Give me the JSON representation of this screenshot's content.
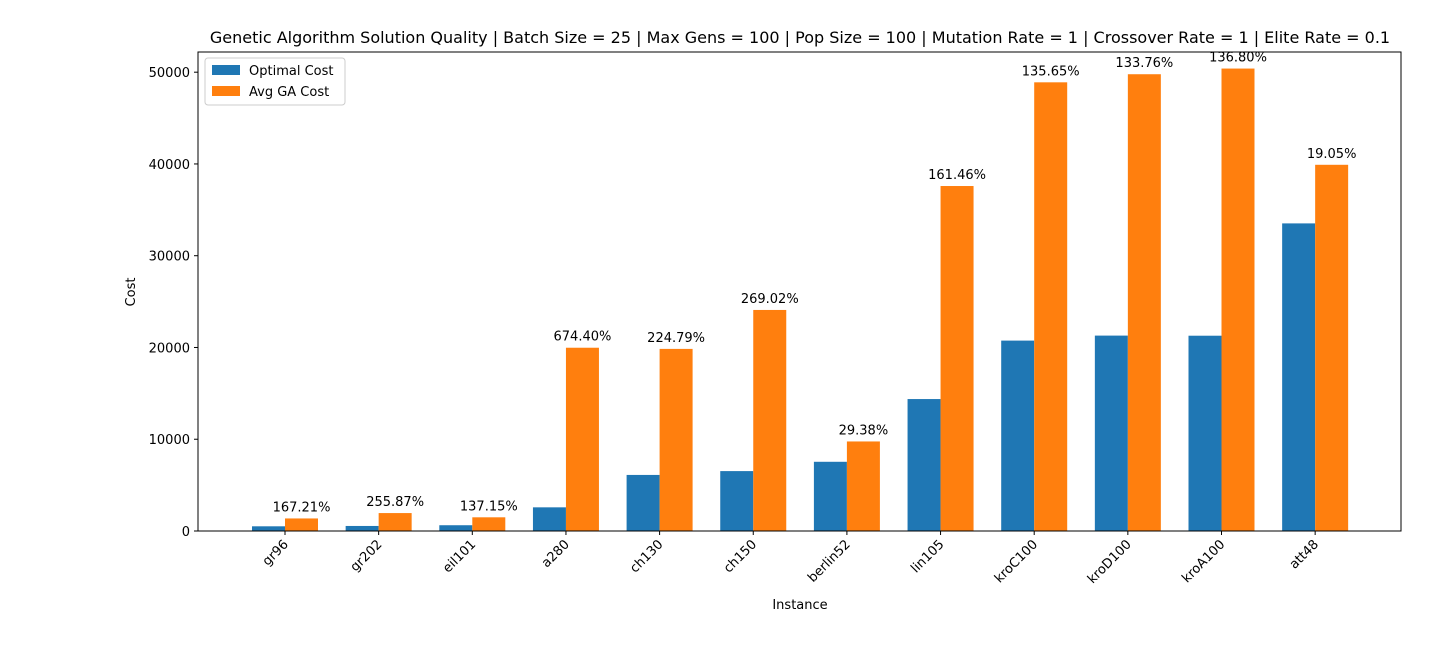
{
  "chart_data": {
    "type": "bar",
    "title": "Genetic Algorithm Solution Quality | Batch Size = 25 | Max Gens = 100 | Pop Size = 100 | Mutation Rate = 1 | Crossover Rate = 1 | Elite Rate = 0.1",
    "xlabel": "Instance",
    "ylabel": "Cost",
    "ylim": [
      0,
      52200
    ],
    "yticks": [
      0,
      10000,
      20000,
      30000,
      40000,
      50000
    ],
    "ytick_labels": [
      "0",
      "10000",
      "20000",
      "30000",
      "40000",
      "50000"
    ],
    "grid": false,
    "legend_position": "top-left",
    "categories": [
      "gr96",
      "gr202",
      "eil101",
      "a280",
      "ch130",
      "ch150",
      "berlin52",
      "lin105",
      "kroC100",
      "kroD100",
      "kroA100",
      "att48"
    ],
    "series": [
      {
        "name": "Optimal Cost",
        "color": "#1f77b4",
        "values": [
          512,
          549,
          629,
          2579,
          6110,
          6528,
          7542,
          14379,
          20749,
          21294,
          21282,
          33522
        ]
      },
      {
        "name": "Avg GA Cost",
        "color": "#ff7f0e",
        "values": [
          1368,
          1954,
          1492,
          19972,
          19845,
          24089,
          9758,
          37595,
          48896,
          49778,
          50396,
          39908
        ]
      }
    ],
    "bar_labels": [
      "167.21%",
      "255.87%",
      "137.15%",
      "674.40%",
      "224.79%",
      "269.02%",
      "29.38%",
      "161.46%",
      "135.65%",
      "133.76%",
      "136.80%",
      "19.05%"
    ]
  }
}
